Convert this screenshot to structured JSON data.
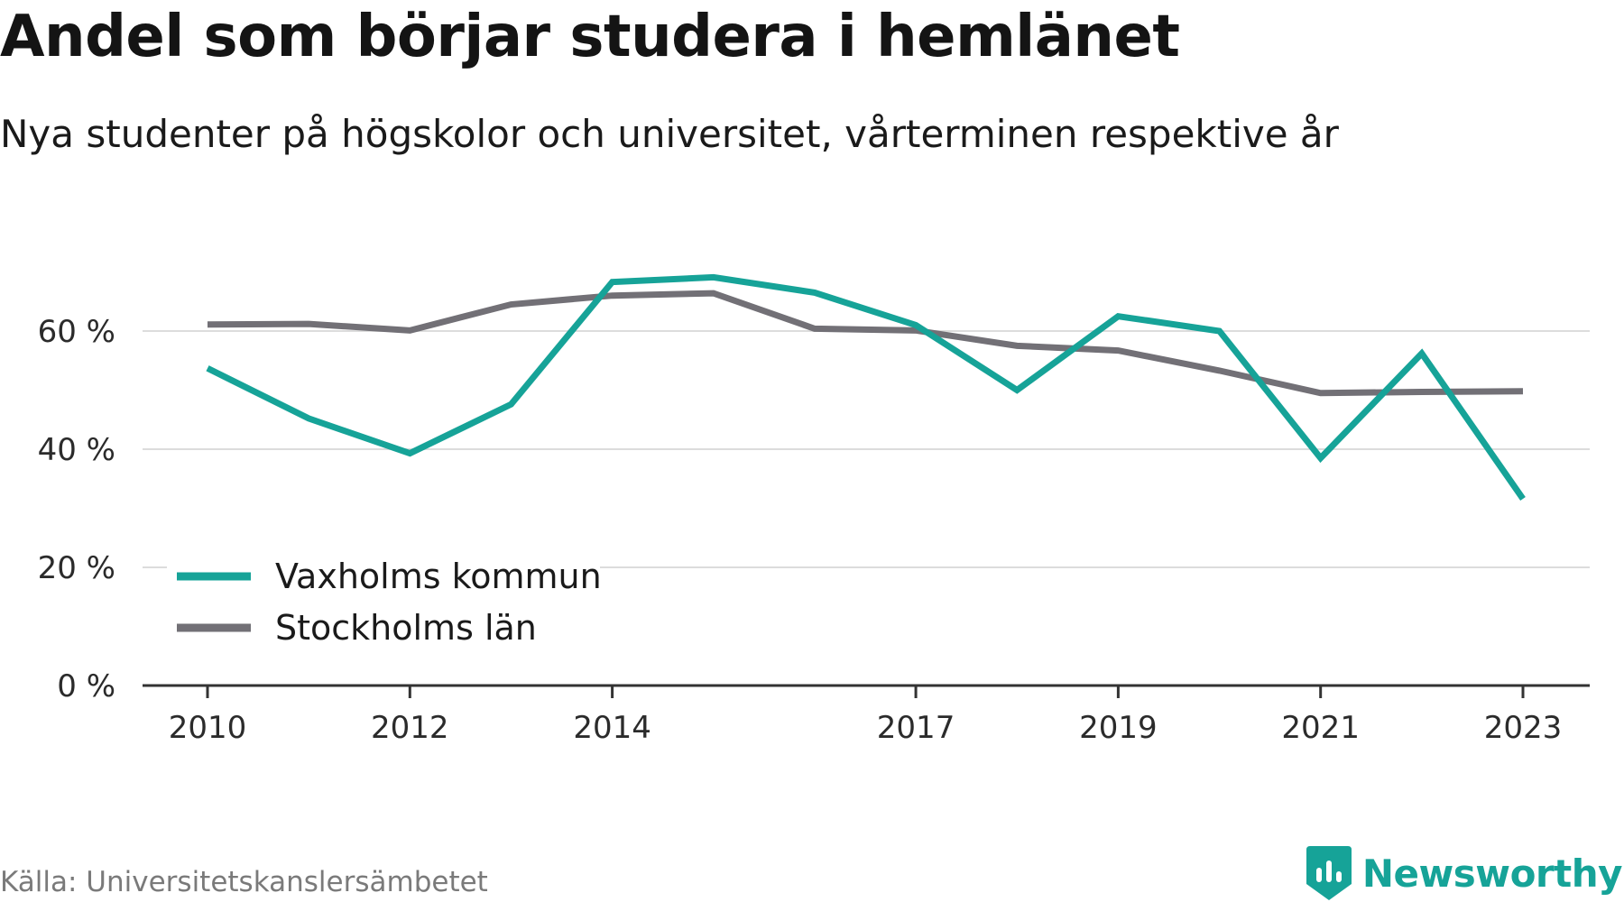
{
  "header": {
    "title": "Andel som börjar studera i hemlänet",
    "subtitle": "Nya studenter på högskolor och universitet, vårterminen respektive år"
  },
  "footer": {
    "source": "Källa: Universitetskanslersämbetet",
    "brand": "Newsworthy",
    "brand_icon": "bar-chart-shield-icon"
  },
  "colors": {
    "vaxholm": "#16a398",
    "stockholm": "#727076",
    "grid": "#dcdcdc",
    "axis": "#333333",
    "brand": "#16a398"
  },
  "chart_data": {
    "type": "line",
    "x": [
      2010,
      2011,
      2012,
      2013,
      2014,
      2015,
      2016,
      2017,
      2018,
      2019,
      2020,
      2021,
      2022,
      2023
    ],
    "x_tick_labels": [
      "2010",
      "2012",
      "2014",
      "2017",
      "2019",
      "2021",
      "2023"
    ],
    "y_tick_values": [
      0,
      20,
      40,
      60
    ],
    "y_tick_labels": [
      "0 %",
      "20 %",
      "40 %",
      "60 %"
    ],
    "ylim": [
      0,
      70
    ],
    "xlabel": "",
    "ylabel": "",
    "grid": true,
    "legend_position": "lower-left",
    "series": [
      {
        "name": "Vaxholms kommun",
        "values": [
          53.7,
          45.2,
          39.3,
          47.6,
          68.3,
          69.1,
          66.5,
          61.0,
          50.0,
          62.5,
          60.0,
          38.5,
          56.2,
          31.6
        ]
      },
      {
        "name": "Stockholms län",
        "values": [
          61.1,
          61.2,
          60.1,
          64.5,
          66.0,
          66.4,
          60.4,
          60.1,
          57.5,
          56.7,
          53.3,
          49.5,
          49.7,
          49.8
        ]
      }
    ]
  }
}
